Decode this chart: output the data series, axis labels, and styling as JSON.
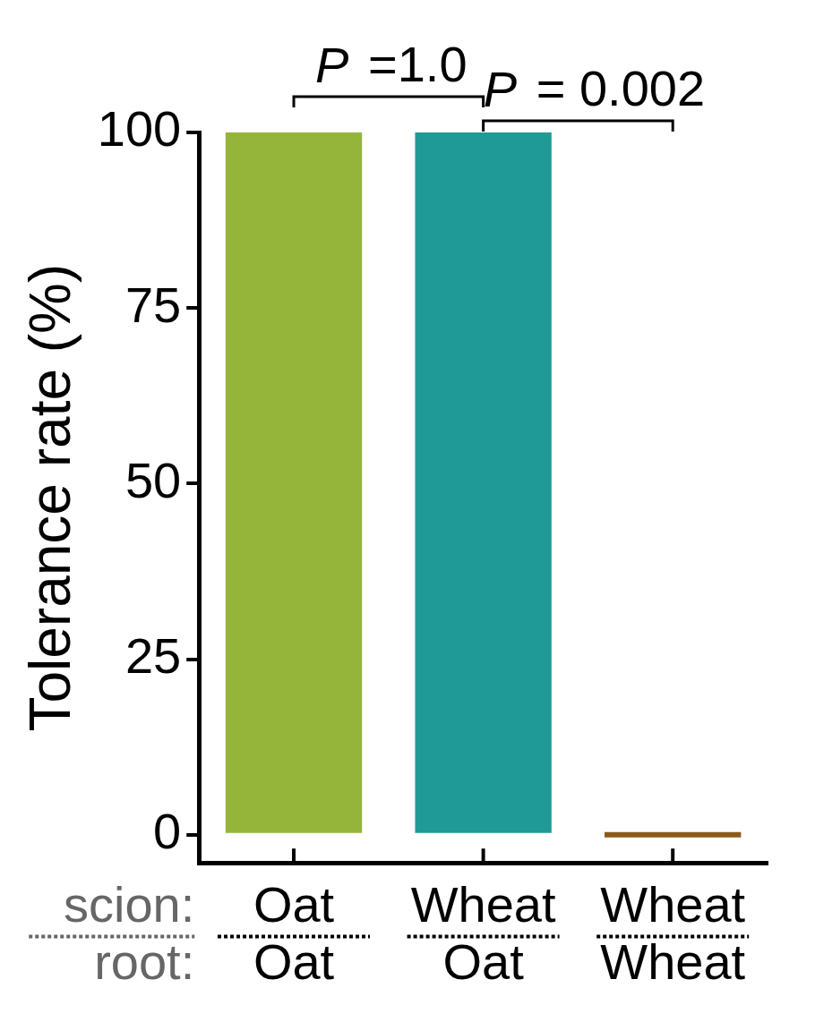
{
  "chart_data": {
    "type": "bar",
    "ylabel": "Tolerance rate (%)",
    "categories": [
      "Oat\nOat",
      "Wheat\nOat",
      "Wheat\nWheat"
    ],
    "values": [
      100,
      100,
      0
    ],
    "colors": [
      "#95b53a",
      "#1f9a96",
      "#8b5a1a"
    ],
    "ylim": [
      -4,
      100
    ],
    "yticks": [
      0,
      25,
      50,
      75,
      100
    ],
    "grid": false,
    "annotations": [
      "P =1.0",
      "P = 0.002",
      "scion:",
      "root:"
    ]
  }
}
